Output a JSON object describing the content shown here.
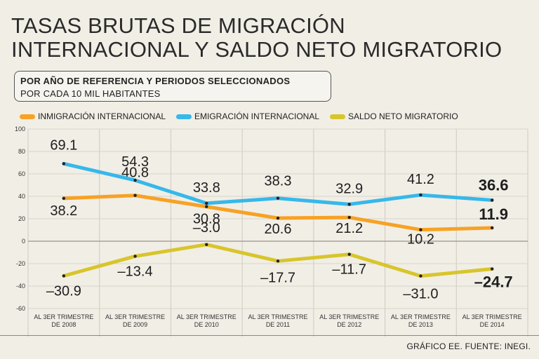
{
  "title_line1": "TASAS BRUTAS DE MIGRACIÓN",
  "title_line2": "INTERNACIONAL Y SALDO NETO MIGRATORIO",
  "subtitle_bold": "POR AÑO DE REFERENCIA Y PERIODOS SELECCIONADOS",
  "subtitle": "POR CADA 10 MIL HABITANTES",
  "source": "GRÁFICO EE. FUENTE: INEGI.",
  "chart_data": {
    "type": "line",
    "categories": [
      [
        "AL 3ER TRIMESTRE",
        "DE 2008"
      ],
      [
        "AL 3ER TRIMESTRE",
        "DE 2009"
      ],
      [
        "AL 3ER TRIMESTRE",
        "DE 2010"
      ],
      [
        "AL 3ER TRIMESTRE",
        "DE 2011"
      ],
      [
        "AL 3ER TRIMESTRE",
        "DE 2012"
      ],
      [
        "AL 3ER TRIMESTRE",
        "DE 2013"
      ],
      [
        "AL 3ER TRIMESTRE",
        "DE 2014"
      ]
    ],
    "ylim": [
      -60,
      100
    ],
    "yticks": [
      100,
      80,
      60,
      40,
      20,
      0,
      -20,
      -40,
      -60
    ],
    "grid": true,
    "legend_position": "top",
    "series": [
      {
        "name": "INMIGRACIÓN INTERNACIONAL",
        "color": "#f7a224",
        "values": [
          38.2,
          40.8,
          30.8,
          20.6,
          21.2,
          10.2,
          11.9
        ],
        "labels": [
          "38.2",
          "40.8",
          "30.8",
          "20.6",
          "21.2",
          "10.2",
          "11.9"
        ]
      },
      {
        "name": "EMIGRACIÓN INTERNACIONAL",
        "color": "#36b8ea",
        "values": [
          69.1,
          54.3,
          33.8,
          38.3,
          32.9,
          41.2,
          36.6
        ],
        "labels": [
          "69.1",
          "54.3",
          "33.8",
          "38.3",
          "32.9",
          "41.2",
          "36.6"
        ]
      },
      {
        "name": "SALDO NETO MIGRATORIO",
        "color": "#d8c52c",
        "values": [
          -30.9,
          -13.4,
          -3.0,
          -17.7,
          -11.7,
          -31.0,
          -24.7
        ],
        "labels": [
          "–30.9",
          "–13.4",
          "–3.0",
          "–17.7",
          "–11.7",
          "–31.0",
          "–24.7"
        ]
      }
    ]
  }
}
